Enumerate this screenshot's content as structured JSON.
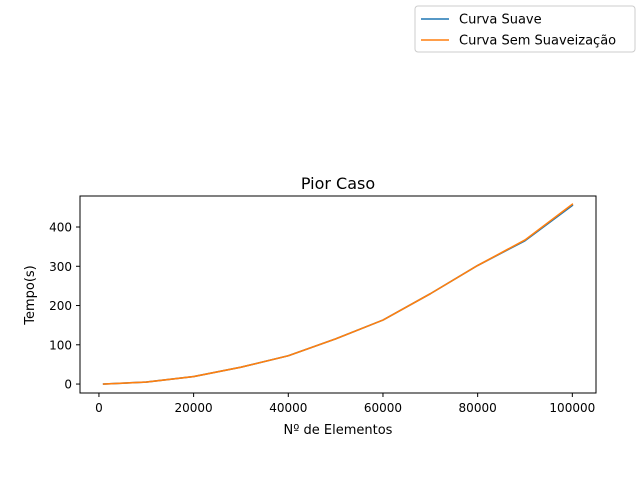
{
  "chart_data": {
    "type": "line",
    "title": "Pior Caso",
    "xlabel": "Nº de Elementos",
    "ylabel": "Tempo(s)",
    "xlim": [
      -4000,
      105000
    ],
    "ylim": [
      -22.8,
      479
    ],
    "xticks": [
      0,
      20000,
      40000,
      60000,
      80000,
      100000
    ],
    "xtick_labels": [
      "0",
      "20000",
      "40000",
      "60000",
      "80000",
      "100000"
    ],
    "yticks": [
      0,
      100,
      200,
      300,
      400
    ],
    "ytick_labels": [
      "0",
      "100",
      "200",
      "300",
      "400"
    ],
    "grid": false,
    "legend_position": "upper-right, outside the axes",
    "series": [
      {
        "name": "Curva Suave",
        "color": "#1f77b4",
        "x": [
          1000,
          10000,
          20000,
          30000,
          40000,
          50000,
          60000,
          70000,
          80000,
          90000,
          100000
        ],
        "y": [
          0.1,
          5,
          19,
          43,
          72,
          115,
          163,
          230,
          302,
          365,
          455
        ]
      },
      {
        "name": "Curva Sem Suaveização",
        "color": "#ff7f0e",
        "x": [
          1000,
          10000,
          20000,
          30000,
          40000,
          50000,
          60000,
          70000,
          80000,
          90000,
          100000
        ],
        "y": [
          0.1,
          5,
          19,
          43,
          72,
          115,
          163,
          230,
          302,
          367,
          458
        ]
      }
    ]
  }
}
